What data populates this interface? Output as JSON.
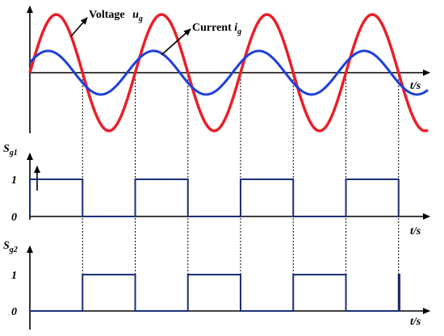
{
  "waveform": {
    "voltage_label": "Voltage",
    "voltage_symbol": "u",
    "voltage_subscript": "g",
    "current_label": "Current",
    "current_symbol": "i",
    "current_subscript": "g",
    "time_axis": "t/s"
  },
  "switch_1": {
    "symbol": "S",
    "subscript": "g1",
    "high_level": "1",
    "low_level": "0",
    "time_axis": "t/s"
  },
  "switch_2": {
    "symbol": "S",
    "subscript": "g2",
    "high_level": "1",
    "low_level": "0",
    "time_axis": "t/s"
  }
}
